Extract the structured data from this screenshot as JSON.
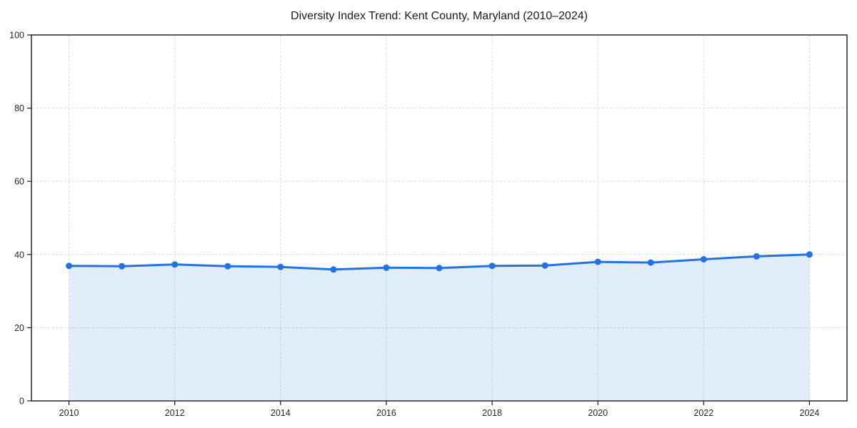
{
  "page": {
    "background_color": "#ffffff"
  },
  "chart_data": {
    "type": "line",
    "title": "Diversity Index Trend: Kent County, Maryland (2010–2024)",
    "xlabel": "",
    "ylabel": "",
    "x": [
      2010,
      2011,
      2012,
      2013,
      2014,
      2015,
      2016,
      2017,
      2018,
      2019,
      2020,
      2021,
      2022,
      2023,
      2024
    ],
    "series": [
      {
        "name": "Diversity Index",
        "values": [
          36.9,
          36.8,
          37.3,
          36.8,
          36.6,
          35.9,
          36.4,
          36.3,
          36.9,
          37.0,
          38.0,
          37.8,
          38.7,
          39.5,
          40.0
        ]
      }
    ],
    "xlim": [
      2009.29,
      2024.71
    ],
    "ylim": [
      0,
      100
    ],
    "xticks": [
      2010,
      2012,
      2014,
      2016,
      2018,
      2020,
      2022,
      2024
    ],
    "yticks": [
      0,
      20,
      40,
      60,
      80,
      100
    ],
    "grid": {
      "visible": true,
      "style": "dashed",
      "color": "#dcdcdc"
    },
    "legend": "none",
    "style": {
      "line_color": "#2272e3",
      "marker_color": "#2272e3",
      "fill_color": "rgba(34,114,227,0.13)",
      "spine_color": "#1a1a1a",
      "tick_label_color": "#262626",
      "area_filled": true,
      "marker": "circle"
    }
  }
}
